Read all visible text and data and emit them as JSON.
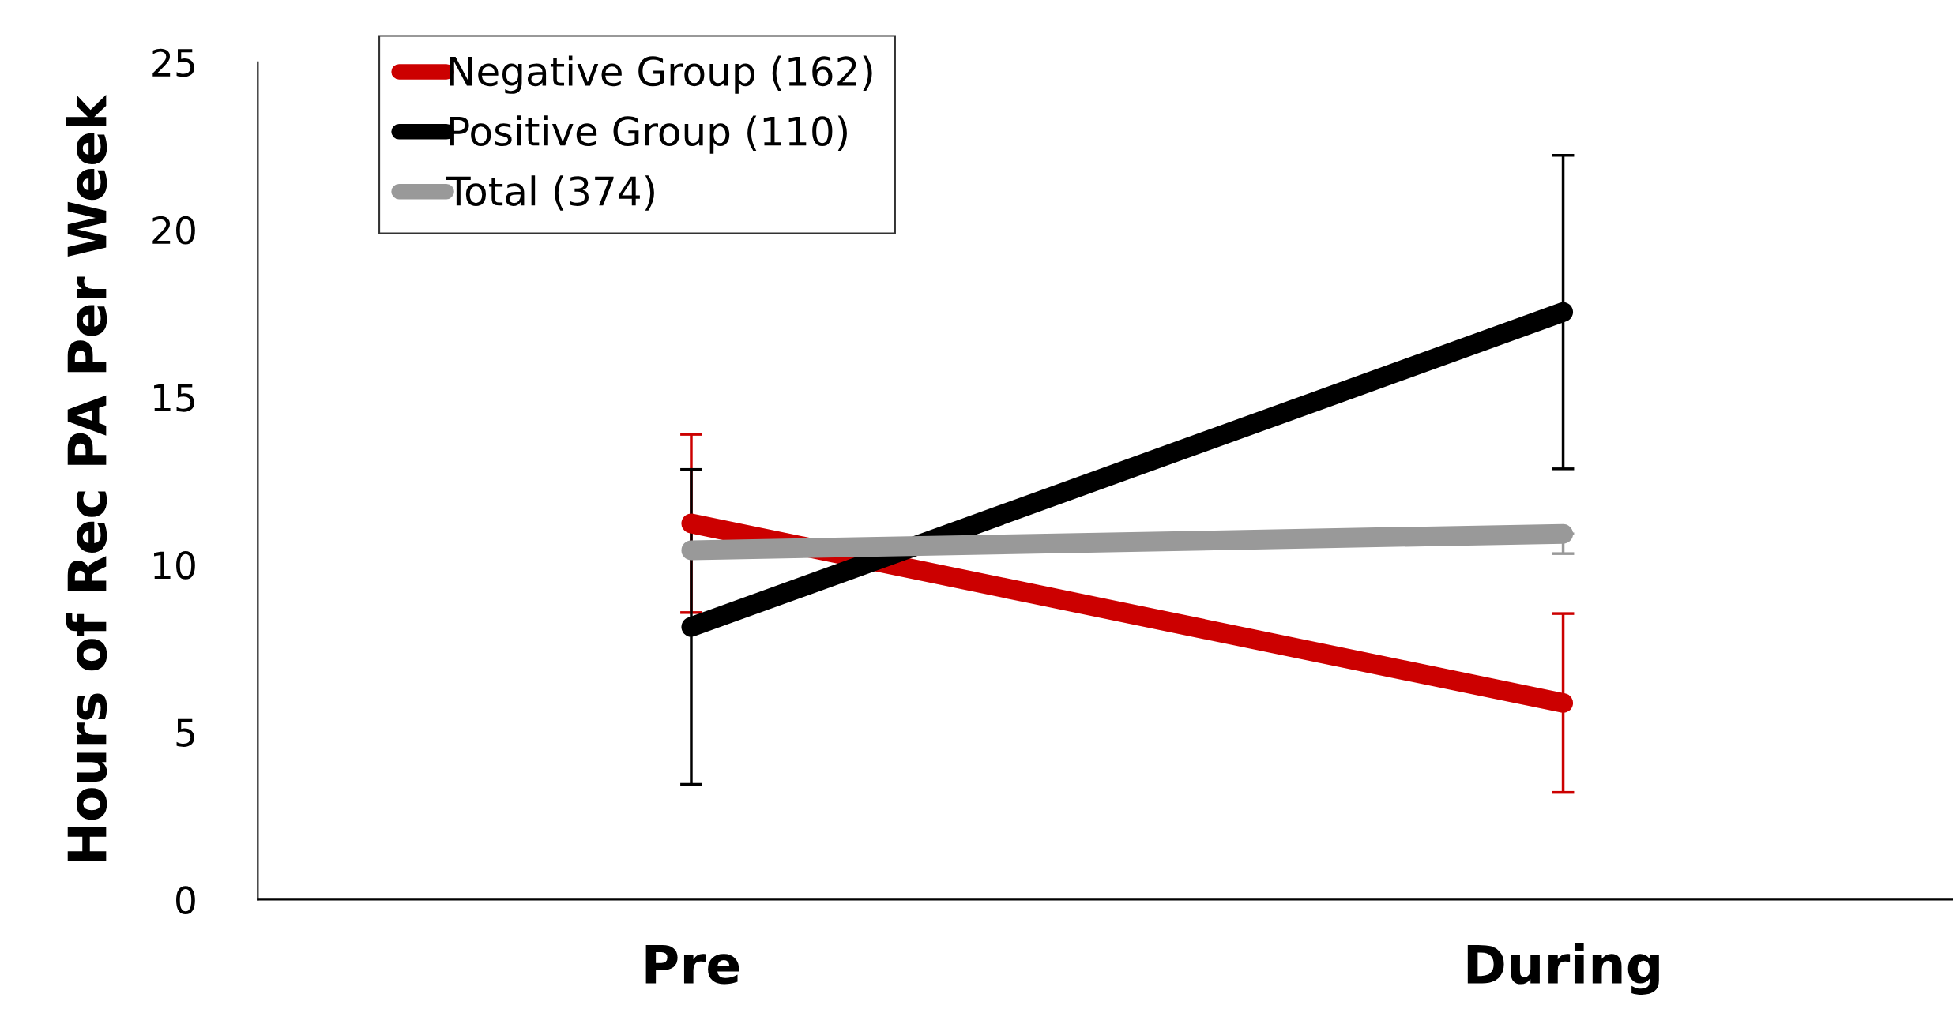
{
  "chart_data": {
    "type": "line",
    "ylabel": "Hours of Rec PA Per Week",
    "categories": [
      "Pre",
      "During"
    ],
    "series": [
      {
        "name": "Negative Group (162)",
        "color": "#cc0000",
        "values": [
          11.23,
          5.87
        ],
        "errors": [
          2.66,
          2.67
        ]
      },
      {
        "name": "Positive Group (110)",
        "color": "#000000",
        "values": [
          8.14,
          17.54
        ],
        "errors": [
          4.7,
          4.68
        ]
      },
      {
        "name": "Total (374)",
        "color": "#999999",
        "values": [
          10.43,
          10.92
        ],
        "errors": [
          null,
          [
            10.33,
            10.92
          ]
        ]
      }
    ],
    "ylim": [
      0,
      25
    ],
    "yticks": [
      0,
      5,
      10,
      15,
      20,
      25
    ],
    "grid": false,
    "legend": "top left",
    "line_style": "solid"
  }
}
